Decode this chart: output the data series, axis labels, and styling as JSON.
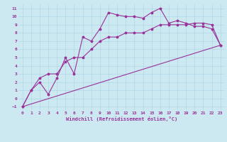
{
  "xlabel": "Windchill (Refroidissement éolien,°C)",
  "bg_color": "#cce8f0",
  "grid_color": "#b0d8e8",
  "line_color": "#993399",
  "xlim": [
    -0.5,
    23.5
  ],
  "ylim": [
    -1.5,
    11.5
  ],
  "xticks": [
    0,
    1,
    2,
    3,
    4,
    5,
    6,
    7,
    8,
    9,
    10,
    11,
    12,
    13,
    14,
    15,
    16,
    17,
    18,
    19,
    20,
    21,
    22,
    23
  ],
  "yticks": [
    -1,
    0,
    1,
    2,
    3,
    4,
    5,
    6,
    7,
    8,
    9,
    10,
    11
  ],
  "line1_x": [
    0,
    1,
    2,
    3,
    4,
    5,
    6,
    7,
    8,
    9,
    10,
    11,
    12,
    13,
    14,
    15,
    16,
    17,
    18,
    19,
    20,
    21,
    22,
    23
  ],
  "line1_y": [
    -1,
    1,
    2,
    0.5,
    2.5,
    5,
    3,
    7.5,
    7,
    8.5,
    10.5,
    10.2,
    10,
    10,
    9.8,
    10.5,
    11,
    9.2,
    9.5,
    9.2,
    8.8,
    8.8,
    8.5,
    6.5
  ],
  "line2_x": [
    0,
    1,
    2,
    3,
    4,
    5,
    6,
    7,
    8,
    9,
    10,
    11,
    12,
    13,
    14,
    15,
    16,
    17,
    18,
    19,
    20,
    21,
    22,
    23
  ],
  "line2_y": [
    -1,
    1,
    2.5,
    3,
    3,
    4.5,
    5,
    5,
    6,
    7,
    7.5,
    7.5,
    8,
    8,
    8,
    8.5,
    9,
    9,
    9,
    9,
    9.2,
    9.2,
    9,
    6.5
  ],
  "line3_x": [
    0,
    23
  ],
  "line3_y": [
    -1,
    6.5
  ],
  "tick_fontsize": 4.5,
  "xlabel_fontsize": 5.0
}
